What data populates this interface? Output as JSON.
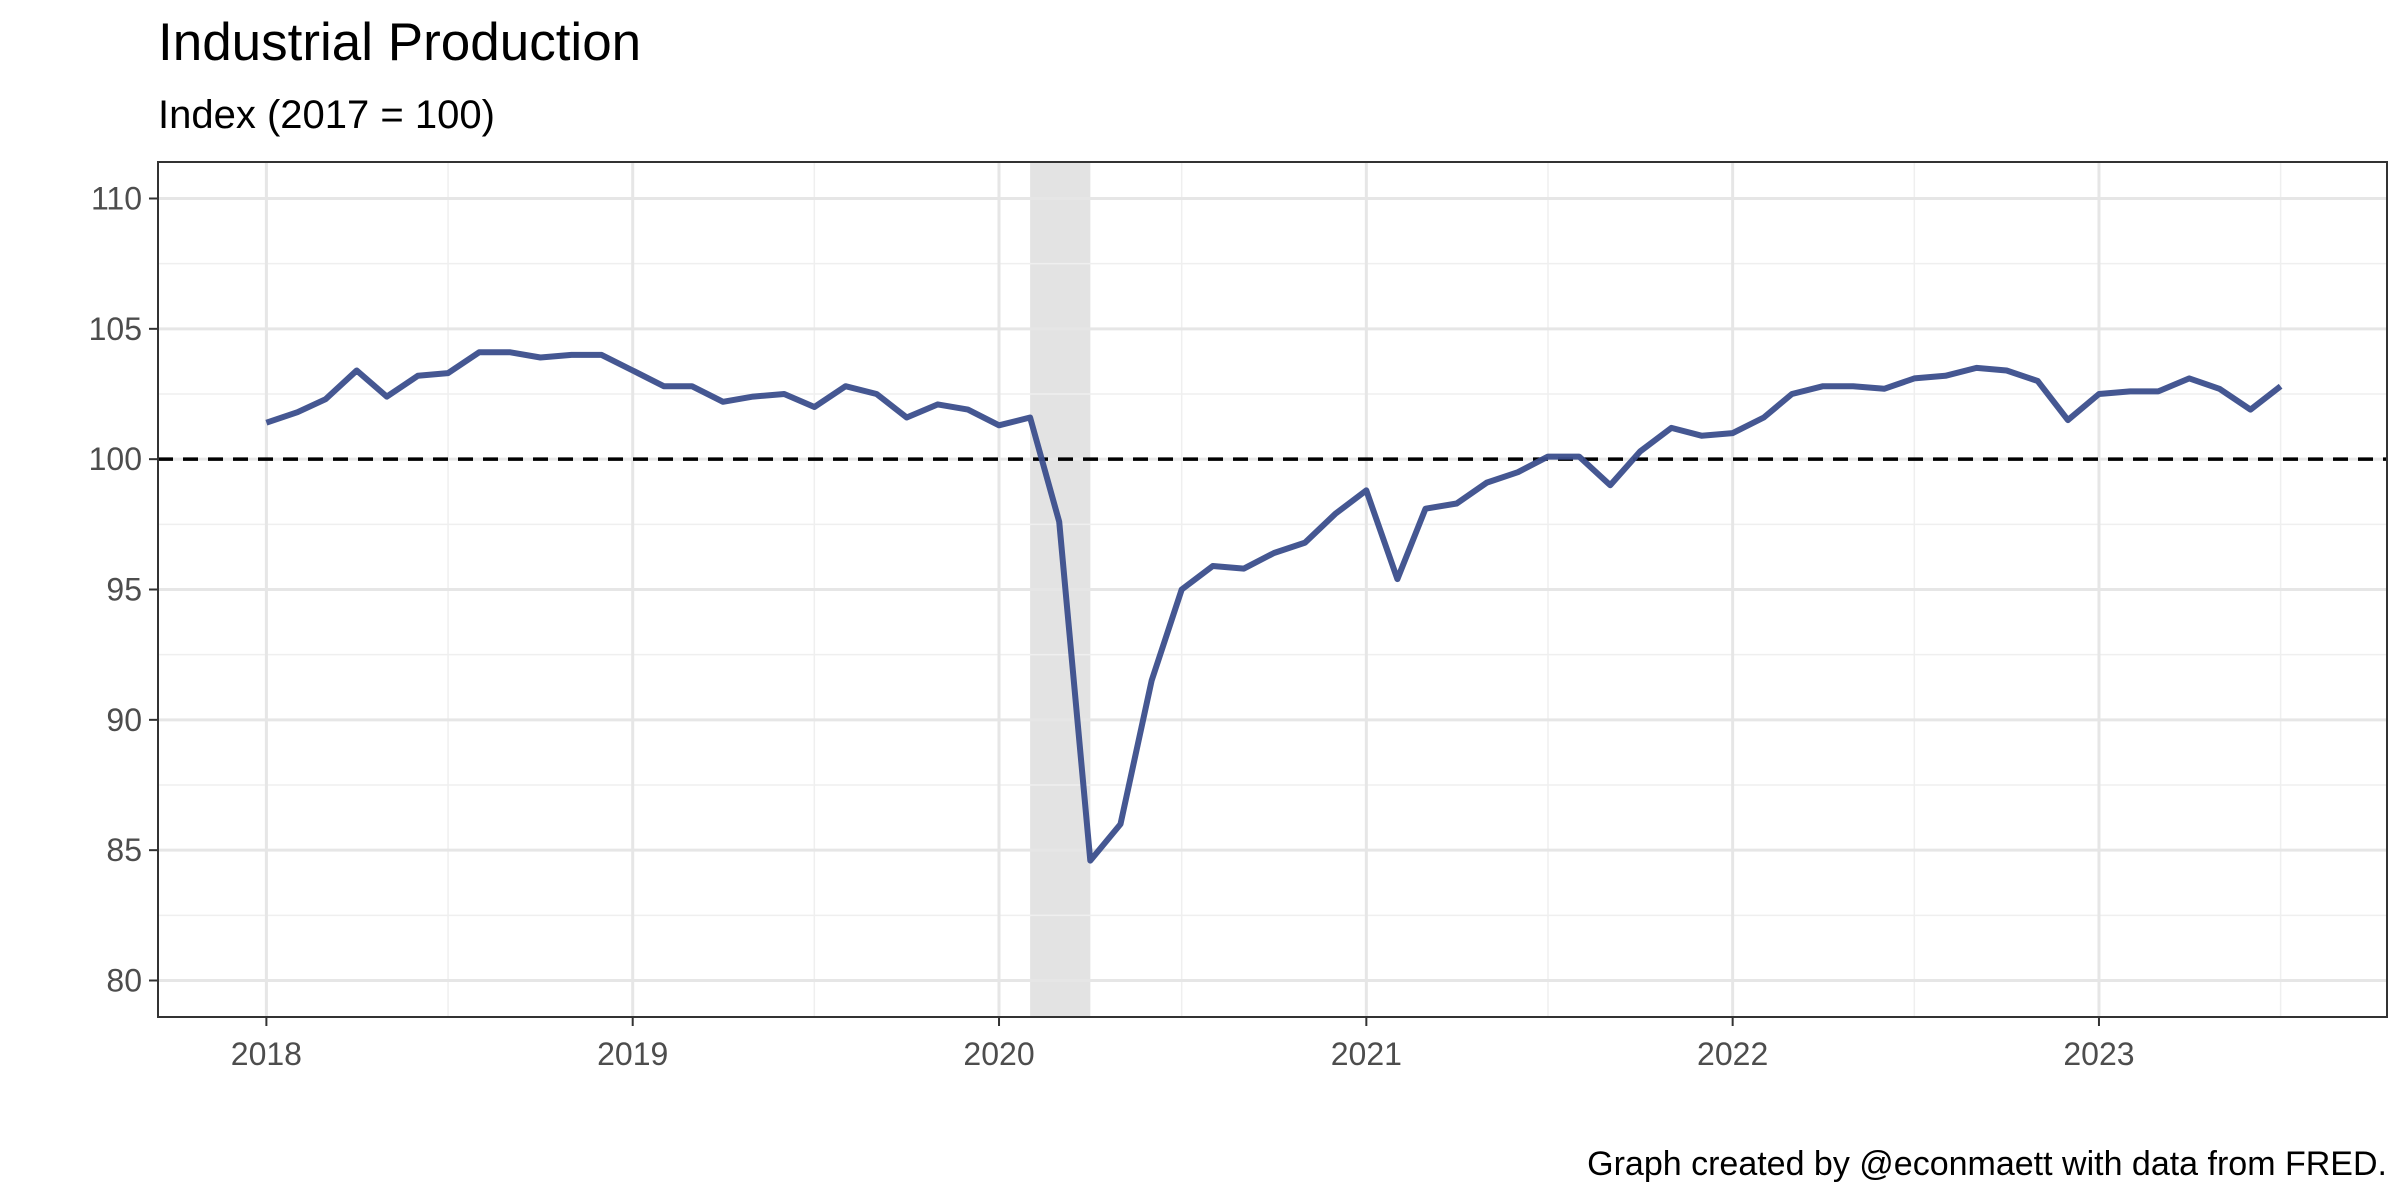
{
  "chart_data": {
    "type": "line",
    "title": "Industrial Production",
    "subtitle": "Index (2017 = 100)",
    "caption": "Graph created by @econmaett with data from FRED.",
    "xlabel": "",
    "ylabel": "",
    "x_ticks": [
      "2018",
      "2019",
      "2020",
      "2021",
      "2022",
      "2023"
    ],
    "y_ticks": [
      80,
      85,
      90,
      95,
      100,
      105,
      110
    ],
    "xlim": [
      "2017-09-15",
      "2023-10-15"
    ],
    "ylim": [
      78.6,
      111.4
    ],
    "grid": true,
    "reference_line": {
      "y": 100,
      "style": "dashed",
      "color": "#000000"
    },
    "recession_shading": {
      "start": "2020-02-01",
      "end": "2020-04-01",
      "color": "#e3e3e3"
    },
    "line_color": "#3b4e8c",
    "x": [
      "2018-01",
      "2018-02",
      "2018-03",
      "2018-04",
      "2018-05",
      "2018-06",
      "2018-07",
      "2018-08",
      "2018-09",
      "2018-10",
      "2018-11",
      "2018-12",
      "2019-01",
      "2019-02",
      "2019-03",
      "2019-04",
      "2019-05",
      "2019-06",
      "2019-07",
      "2019-08",
      "2019-09",
      "2019-10",
      "2019-11",
      "2019-12",
      "2020-01",
      "2020-02",
      "2020-03",
      "2020-04",
      "2020-05",
      "2020-06",
      "2020-07",
      "2020-08",
      "2020-09",
      "2020-10",
      "2020-11",
      "2020-12",
      "2021-01",
      "2021-02",
      "2021-03",
      "2021-04",
      "2021-05",
      "2021-06",
      "2021-07",
      "2021-08",
      "2021-09",
      "2021-10",
      "2021-11",
      "2021-12",
      "2022-01",
      "2022-02",
      "2022-03",
      "2022-04",
      "2022-05",
      "2022-06",
      "2022-07",
      "2022-08",
      "2022-09",
      "2022-10",
      "2022-11",
      "2022-12",
      "2023-01",
      "2023-02",
      "2023-03",
      "2023-04",
      "2023-05",
      "2023-06",
      "2023-07"
    ],
    "series": [
      {
        "values": [
          101.4,
          101.8,
          102.3,
          103.4,
          102.4,
          103.2,
          103.3,
          104.1,
          104.1,
          103.9,
          104.0,
          104.0,
          103.4,
          102.8,
          102.8,
          102.2,
          102.4,
          102.5,
          102.0,
          102.8,
          102.5,
          101.6,
          102.1,
          101.9,
          101.3,
          101.6,
          97.6,
          84.6,
          86.0,
          91.5,
          95.0,
          95.9,
          95.8,
          96.4,
          96.8,
          97.9,
          98.8,
          95.4,
          98.1,
          98.3,
          99.1,
          99.5,
          100.1,
          100.1,
          99.0,
          100.3,
          101.2,
          100.9,
          101.0,
          101.6,
          102.5,
          102.8,
          102.8,
          102.7,
          103.1,
          103.2,
          103.5,
          103.4,
          103.0,
          101.5,
          102.5,
          102.6,
          102.6,
          103.1,
          102.7,
          101.9,
          102.8
        ]
      }
    ]
  }
}
